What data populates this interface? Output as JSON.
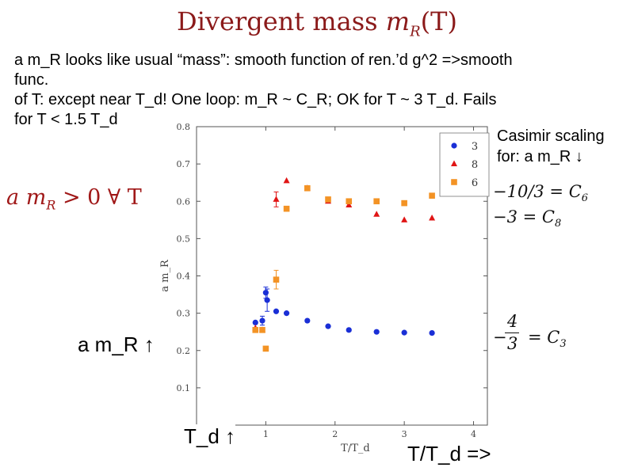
{
  "slide": {
    "title_prefix": "Divergent mass ",
    "title_math": "m",
    "title_sub": "R",
    "title_suffix": "(T)",
    "text_line1": "a m_R looks like usual “mass”: smooth function of ren.’d g^2 =>smooth",
    "text_line2": "func.",
    "text_line3": "of T: except near T_d!  One loop: m_R ~ C_R; OK for T ~ 3 T_d.  Fails",
    "text_line4": "for T < 1.5 T_d",
    "casimir_line1": "Casimir scaling",
    "casimir_line2": "for:  a m_R ↓",
    "condition_a": "a",
    "condition_m": "m",
    "condition_sub": "R",
    "condition_rest": " > 0 ∀ T",
    "c6_label": "−10/3 = C",
    "c6_sub": "6",
    "c8_label": "−3 = C",
    "c8_sub": "8",
    "c3_num": "4",
    "c3_den": "3",
    "c3_minus": "−",
    "c3_rest": "= C",
    "c3_sub": "3",
    "arrow_amr": "a m_R ↑",
    "arrow_td": "T_d ↑",
    "arrow_ttd": "T/T_d =>"
  },
  "colors": {
    "rep3": "#1a2fd6",
    "rep8": "#e01515",
    "rep6": "#f39325",
    "accent": "#8b1a1a"
  },
  "chart_data": {
    "type": "scatter",
    "xlabel": "T/T_d",
    "ylabel": "a m_R",
    "xlim": [
      0.0,
      4.2
    ],
    "ylim": [
      0.0,
      0.8
    ],
    "xticks": [
      "1",
      "2",
      "3",
      "4"
    ],
    "yticks": [
      "0.1",
      "0.2",
      "0.3",
      "0.4",
      "0.5",
      "0.6",
      "0.7",
      "0.8"
    ],
    "legend_position": "top-right",
    "series": [
      {
        "name": "3",
        "marker": "circle",
        "x": [
          0.85,
          0.95,
          1.0,
          1.02,
          1.15,
          1.3,
          1.6,
          1.9,
          2.2,
          2.6,
          3.0,
          3.4
        ],
        "y": [
          0.275,
          0.28,
          0.355,
          0.335,
          0.305,
          0.3,
          0.28,
          0.265,
          0.255,
          0.25,
          0.248,
          0.247
        ],
        "err": [
          0,
          0.012,
          0.015,
          0.03,
          0,
          0,
          0,
          0,
          0,
          0,
          0,
          0
        ]
      },
      {
        "name": "8",
        "marker": "triangle",
        "x": [
          0.85,
          0.95,
          1.15,
          1.3,
          1.6,
          1.9,
          2.2,
          2.6,
          3.0,
          3.4
        ],
        "y": [
          0.26,
          0.255,
          0.605,
          0.655,
          0.635,
          0.6,
          0.59,
          0.565,
          0.55,
          0.555
        ],
        "err": [
          0,
          0,
          0.02,
          0,
          0,
          0,
          0,
          0,
          0,
          0
        ]
      },
      {
        "name": "6",
        "marker": "square",
        "x": [
          0.85,
          0.95,
          1.0,
          1.15,
          1.3,
          1.6,
          1.9,
          2.2,
          2.6,
          3.0,
          3.4
        ],
        "y": [
          0.255,
          0.255,
          0.205,
          0.39,
          0.58,
          0.635,
          0.605,
          0.6,
          0.6,
          0.595,
          0.615
        ],
        "err": [
          0,
          0,
          0,
          0.025,
          0,
          0,
          0,
          0,
          0,
          0,
          0
        ]
      }
    ]
  }
}
